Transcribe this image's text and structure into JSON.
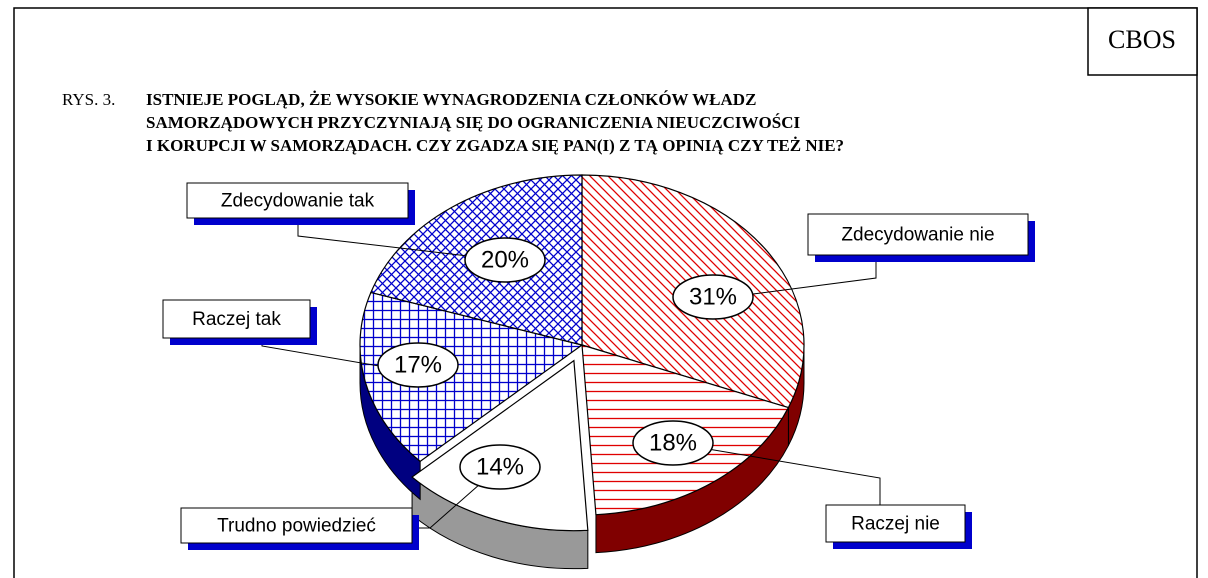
{
  "chart_data": {
    "type": "pie",
    "source": "CBOS",
    "figure_label": "RYS. 3.",
    "title": [
      "ISTNIEJE POGLĄD, ŻE WYSOKIE WYNAGRODZENIA CZŁONKÓW WŁADZ",
      "SAMORZĄDOWYCH PRZYCZYNIAJĄ SIĘ DO OGRANICZENIA NIEUCZCIWOŚCI",
      "I KORUPCJI W SAMORZĄDACH. CZY ZGADZA SIĘ PAN(I) Z TĄ OPINIĄ CZY TEŻ NIE?"
    ],
    "categories": [
      "Zdecydowanie nie",
      "Raczej nie",
      "Trudno powiedzieć",
      "Raczej tak",
      "Zdecydowanie tak"
    ],
    "values": [
      31,
      18,
      14,
      17,
      20
    ],
    "value_labels": [
      "31%",
      "18%",
      "14%",
      "17%",
      "20%"
    ],
    "colors": [
      "#e00000",
      "#e00000",
      "#ffffff",
      "#0000cc",
      "#0000cc"
    ],
    "side_colors": [
      "#800000",
      "#800000",
      "#999999",
      "#000080",
      "#000080"
    ],
    "patterns": [
      "diagonal",
      "horizontal",
      "none",
      "grid",
      "crosshatch"
    ],
    "exploded": 2
  }
}
